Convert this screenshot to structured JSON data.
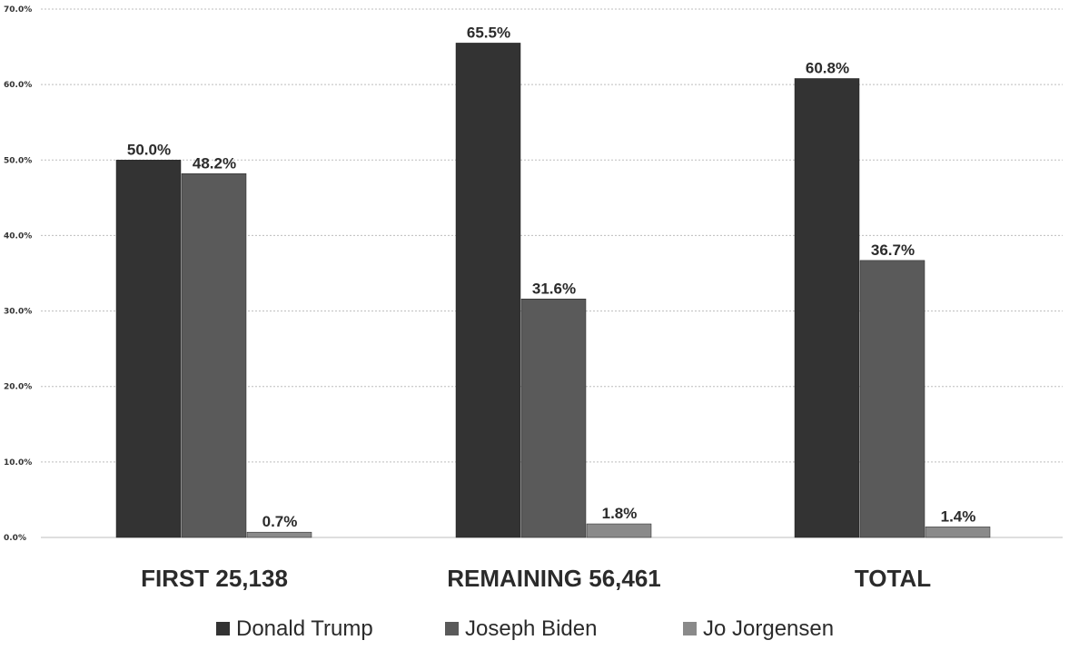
{
  "chart_data": {
    "type": "bar",
    "categories": [
      "FIRST 25,138",
      "REMAINING 56,461",
      "TOTAL"
    ],
    "series": [
      {
        "name": "Donald Trump",
        "values": [
          50.0,
          65.5,
          60.8
        ],
        "labels": [
          "50.0%",
          "65.5%",
          "60.8%"
        ],
        "color": "#333333"
      },
      {
        "name": "Joseph Biden",
        "values": [
          48.2,
          31.6,
          36.7
        ],
        "labels": [
          "48.2%",
          "31.6%",
          "36.7%"
        ],
        "color": "#5a5a5a"
      },
      {
        "name": "Jo Jorgensen",
        "values": [
          0.7,
          1.8,
          1.4
        ],
        "labels": [
          "0.7%",
          "1.8%",
          "1.4%"
        ],
        "color": "#8a8a8a"
      }
    ],
    "ylim": [
      0,
      70
    ],
    "yticks": [
      0,
      10,
      20,
      30,
      40,
      50,
      60,
      70
    ],
    "ytick_labels": [
      "0.0%",
      "10.0%",
      "20.0%",
      "30.0%",
      "40.0%",
      "50.0%",
      "60.0%",
      "70.0%"
    ],
    "grid": true,
    "legend": "bottom"
  }
}
